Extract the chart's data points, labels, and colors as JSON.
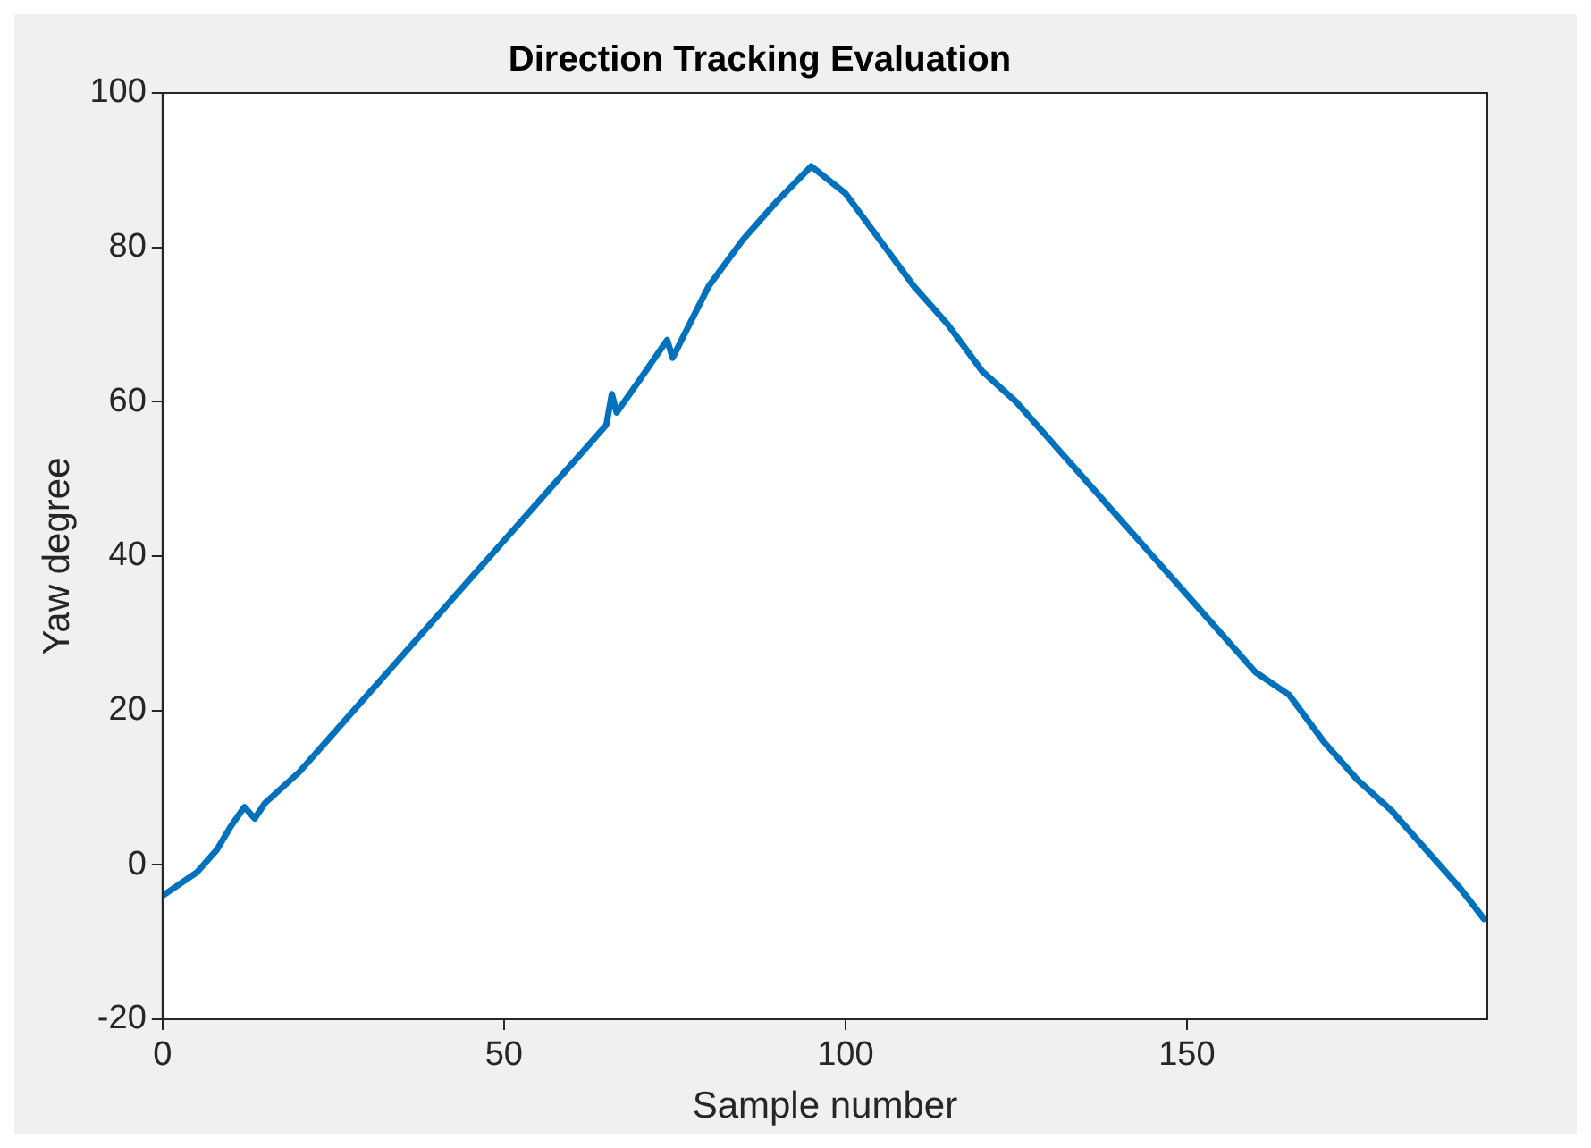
{
  "chart_data": {
    "type": "line",
    "title": "Direction Tracking Evaluation",
    "xlabel": "Sample number",
    "ylabel": "Yaw degree",
    "x": [
      0,
      5,
      8,
      10,
      12,
      13.5,
      15,
      20,
      25,
      30,
      35,
      40,
      45,
      50,
      55,
      60,
      65,
      65.8,
      66.5,
      70,
      73.9,
      74.7,
      80,
      85,
      90,
      95,
      100,
      105,
      110,
      115,
      120,
      125,
      130,
      135,
      140,
      145,
      150,
      155,
      160,
      165,
      170,
      175,
      180,
      185,
      190,
      193.5
    ],
    "series": [
      {
        "color": "#0072bd",
        "values": [
          -4,
          -1,
          2,
          5,
          7.5,
          6,
          8,
          12,
          17,
          22,
          27,
          32,
          37,
          42,
          47,
          52,
          57,
          61,
          58.6,
          63,
          68,
          65.7,
          75,
          81,
          86,
          90.5,
          87,
          81,
          75,
          70,
          64,
          60,
          55,
          50,
          45,
          40,
          35,
          30,
          25,
          22,
          16,
          11,
          7,
          2,
          -3,
          -7
        ]
      }
    ],
    "xlim": [
      0,
      194
    ],
    "xticks": [
      0,
      50,
      100,
      150
    ],
    "ylim": [
      -20,
      100
    ],
    "yticks": [
      -20,
      0,
      20,
      40,
      60,
      80,
      100
    ],
    "grid": false,
    "legend": false,
    "marker": "none",
    "line_style": "solid"
  }
}
